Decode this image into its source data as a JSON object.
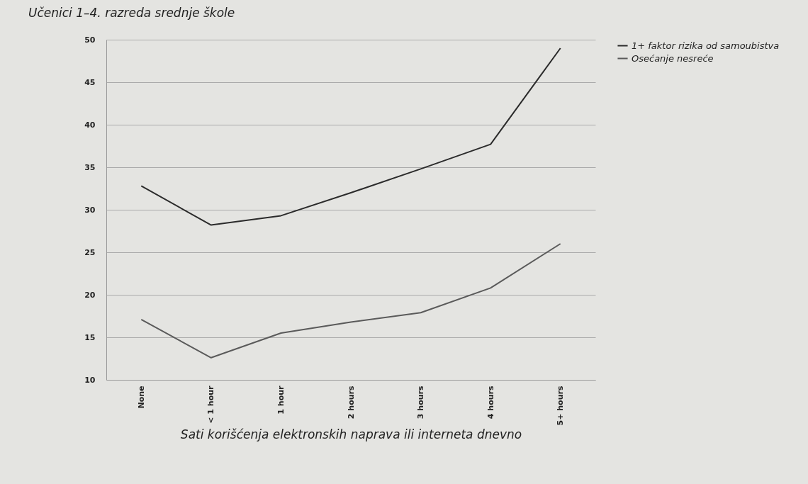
{
  "chart_data": {
    "type": "line",
    "title": "Učenici 1–4. razreda srednje škole",
    "xlabel": "Sati korišćenja elektronskih naprava ili interneta dnevno",
    "categories": [
      "None",
      "< 1 hour",
      "1 hour",
      "2 hours",
      "3 hours",
      "4 hours",
      "5+ hours"
    ],
    "series": [
      {
        "name": "1+ faktor rizika od samoubistva",
        "color": "#2b2b2b",
        "values": [
          32.8,
          28.2,
          29.3,
          32.0,
          34.8,
          37.7,
          49.0
        ]
      },
      {
        "name": "Osećanje nesreće",
        "color": "#5a5a5a",
        "values": [
          17.1,
          12.6,
          15.5,
          16.8,
          17.9,
          20.8,
          26.0
        ]
      }
    ],
    "ylim": [
      10,
      50
    ],
    "yticks": [
      10,
      15,
      20,
      25,
      30,
      35,
      40,
      45,
      50
    ],
    "grid": "y",
    "legend": "right",
    "marker": "none",
    "line_style": "solid"
  }
}
